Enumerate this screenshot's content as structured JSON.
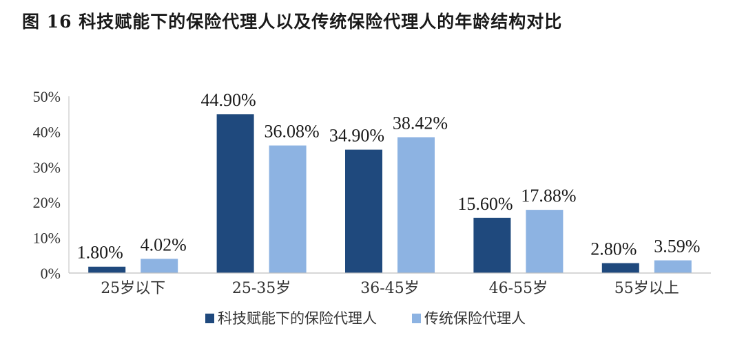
{
  "title": "图 16 科技赋能下的保险代理人以及传统保险代理人的年龄结构对比",
  "chart_data": {
    "type": "bar",
    "title": "图 16 科技赋能下的保险代理人以及传统保险代理人的年龄结构对比",
    "categories": [
      "25岁以下",
      "25-35岁",
      "36-45岁",
      "46-55岁",
      "55岁以上"
    ],
    "series": [
      {
        "name": "科技赋能下的保险代理人",
        "color": "#1f497d",
        "values": [
          1.8,
          44.9,
          34.9,
          15.6,
          2.8
        ],
        "labels": [
          "1.80%",
          "44.90%",
          "34.90%",
          "15.60%",
          "2.80%"
        ]
      },
      {
        "name": "传统保险代理人",
        "color": "#8db3e2",
        "values": [
          4.02,
          36.08,
          38.42,
          17.88,
          3.59
        ],
        "labels": [
          "4.02%",
          "36.08%",
          "38.42%",
          "17.88%",
          "3.59%"
        ]
      }
    ],
    "ylim": [
      0,
      50
    ],
    "yticks": [
      "0%",
      "10%",
      "20%",
      "30%",
      "40%",
      "50%"
    ],
    "xlabel": "",
    "ylabel": "",
    "grid": false,
    "legend_position": "bottom"
  }
}
